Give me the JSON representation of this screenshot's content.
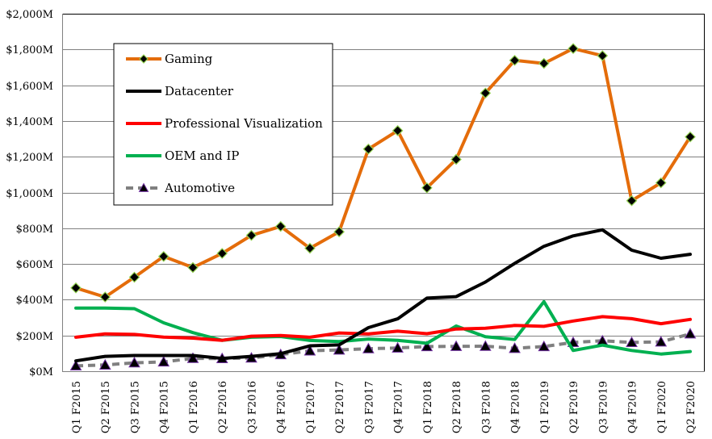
{
  "chart_data": {
    "type": "line",
    "title": "",
    "xlabel": "",
    "ylabel": "",
    "ylim": [
      0,
      2000
    ],
    "yticks": [
      0,
      200,
      400,
      600,
      800,
      1000,
      1200,
      1400,
      1600,
      1800,
      2000
    ],
    "ytick_labels": [
      "$0M",
      "$200M",
      "$400M",
      "$600M",
      "$800M",
      "$1,000M",
      "$1,200M",
      "$1,400M",
      "$1,600M",
      "$1,800M",
      "$2,000M"
    ],
    "grid": true,
    "legend_position": "top-left",
    "categories": [
      "Q1 F2015",
      "Q2 F2015",
      "Q3 F2015",
      "Q4 F2015",
      "Q1 F2016",
      "Q2 F2016",
      "Q3 F2016",
      "Q4 F2016",
      "Q1 F2017",
      "Q2 F2017",
      "Q3 F2017",
      "Q4 F2017",
      "Q1 F2018",
      "Q2 F2018",
      "Q3 F2018",
      "Q4 F2018",
      "Q1 F2019",
      "Q2 F2019",
      "Q3 F2019",
      "Q4 F2019",
      "Q1 F2020",
      "Q2 F2020"
    ],
    "series": [
      {
        "name": "Gaming",
        "color": "#E46C0A",
        "marker": "diamond",
        "marker_fill": "#000000",
        "marker_stroke": "#92D050",
        "dashed": false,
        "values": [
          466,
          415,
          526,
          642,
          580,
          659,
          760,
          810,
          688,
          780,
          1243,
          1346,
          1026,
          1185,
          1556,
          1739,
          1722,
          1805,
          1765,
          954,
          1054,
          1311
        ]
      },
      {
        "name": "Datacenter",
        "color": "#000000",
        "marker": "none",
        "dashed": false,
        "values": [
          58,
          83,
          88,
          88,
          88,
          72,
          83,
          98,
          142,
          147,
          244,
          293,
          409,
          417,
          499,
          603,
          699,
          757,
          791,
          677,
          632,
          654
        ]
      },
      {
        "name": "Professional Visualization",
        "color": "#FF0000",
        "marker": "none",
        "dashed": false,
        "values": [
          190,
          209,
          206,
          191,
          185,
          173,
          196,
          200,
          190,
          214,
          209,
          224,
          210,
          236,
          240,
          256,
          251,
          281,
          305,
          294,
          266,
          290
        ]
      },
      {
        "name": "OEM and IP",
        "color": "#00B050",
        "marker": "none",
        "dashed": false,
        "values": [
          353,
          353,
          350,
          271,
          216,
          173,
          190,
          194,
          172,
          166,
          180,
          173,
          156,
          253,
          193,
          178,
          389,
          116,
          146,
          116,
          96,
          110
        ]
      },
      {
        "name": "Automotive",
        "color": "#808080",
        "marker": "triangle",
        "marker_fill": "#000000",
        "marker_stroke": "#7030A0",
        "dashed": true,
        "values": [
          30,
          35,
          47,
          52,
          72,
          71,
          74,
          93,
          114,
          119,
          126,
          130,
          138,
          139,
          140,
          128,
          138,
          161,
          170,
          161,
          164,
          209
        ]
      }
    ]
  }
}
